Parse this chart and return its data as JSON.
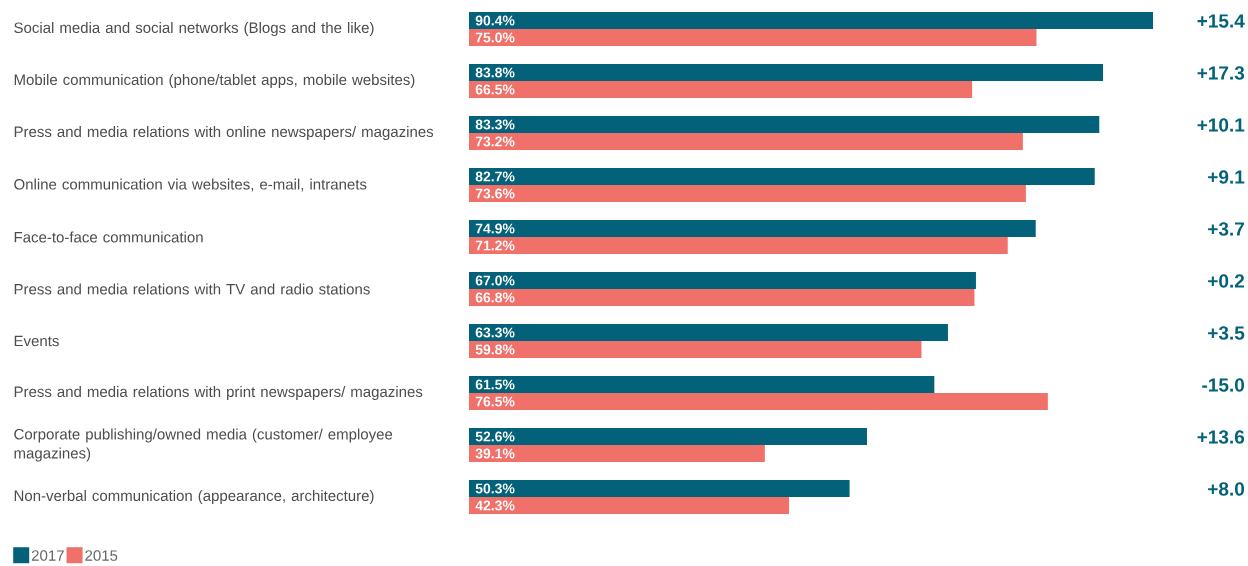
{
  "chart_data": {
    "type": "bar",
    "orientation": "horizontal",
    "legend": "bottom left",
    "tick_labels": "y",
    "categories": [
      "Social media and social networks (Blogs and the like)",
      "Mobile communication (phone/tablet apps, mobile websites)",
      "Press and media relations with online newspapers/ magazines",
      "Online communication via websites, e-mail, intranets",
      "Face-to-face communication",
      "Press and media relations with TV and radio stations",
      "Events",
      "Press and media relations with print newspapers/ magazines",
      "Corporate publishing/owned media (customer/ employee magazines)",
      "Non-verbal communication (appearance, architecture)"
    ],
    "series": [
      {
        "name": "2017",
        "color": "#03627a",
        "values": [
          90.4,
          83.8,
          83.3,
          82.7,
          74.9,
          67.0,
          63.3,
          61.5,
          52.6,
          50.3
        ],
        "value_labels": [
          "90.4%",
          "83.8%",
          "83.3%",
          "82.7%",
          "74.9%",
          "67.0%",
          "63.3%",
          "61.5%",
          "52.6%",
          "50.3%"
        ]
      },
      {
        "name": "2015",
        "color": "#f0706a",
        "values": [
          75.0,
          66.5,
          73.2,
          73.6,
          71.2,
          66.8,
          59.8,
          76.5,
          39.1,
          42.3
        ],
        "value_labels": [
          "75.0%",
          "66.5%",
          "73.2%",
          "73.6%",
          "71.2%",
          "66.8%",
          "59.8%",
          "76.5%",
          "39.1%",
          "42.3%"
        ]
      }
    ],
    "annotations": [
      "+15.4",
      "+17.3",
      "+10.1",
      "+9.1",
      "+3.7",
      "+0.2",
      "+3.5",
      "-15.0",
      "+13.6",
      "+8.0"
    ]
  }
}
